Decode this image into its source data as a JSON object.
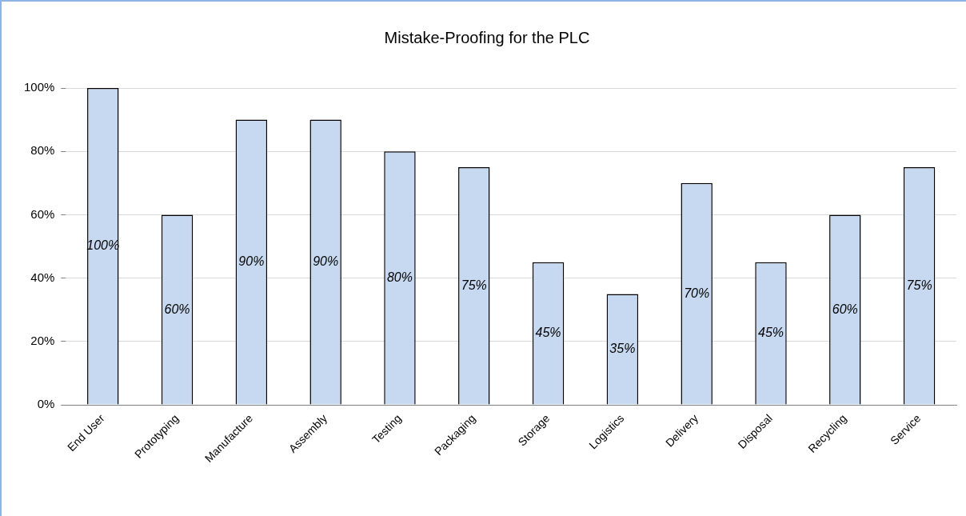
{
  "chart_data": {
    "type": "bar",
    "title": "Mistake-Proofing for the PLC",
    "categories": [
      "End User",
      "Prototyping",
      "Manufacture",
      "Assembly",
      "Testing",
      "Packaging",
      "Storage",
      "Logistics",
      "Delivery",
      "Disposal",
      "Recycling",
      "Service"
    ],
    "values": [
      100,
      60,
      90,
      90,
      80,
      75,
      45,
      35,
      70,
      45,
      60,
      75
    ],
    "value_labels": [
      "100%",
      "60%",
      "90%",
      "90%",
      "80%",
      "75%",
      "45%",
      "35%",
      "70%",
      "45%",
      "60%",
      "75%"
    ],
    "color": "#c6d9f1",
    "ylim": [
      0,
      100
    ],
    "yticks": [
      {
        "value": 0,
        "label": "0%"
      },
      {
        "value": 20,
        "label": "20%"
      },
      {
        "value": 40,
        "label": "40%"
      },
      {
        "value": 60,
        "label": "60%"
      },
      {
        "value": 80,
        "label": "80%"
      },
      {
        "value": 100,
        "label": "100%"
      }
    ],
    "grid": "y",
    "legend": false
  }
}
